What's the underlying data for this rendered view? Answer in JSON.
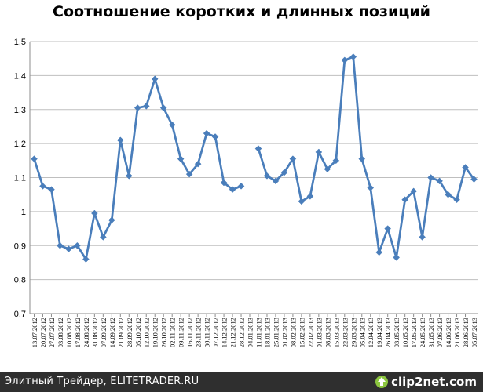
{
  "chart_data": {
    "type": "line",
    "title": "Соотношение коротких и длинных позиций",
    "xlabel": "",
    "ylabel": "",
    "ylim": [
      0.7,
      1.5
    ],
    "yticks": [
      "1,5",
      "1,4",
      "1,3",
      "1,2",
      "1,1",
      "1",
      "0,9",
      "0,8",
      "0,7"
    ],
    "grid": true,
    "legend": "none",
    "line_color": "#4a7ebb",
    "categories": [
      "13.07.2012",
      "20.07.2012",
      "27.07.2012",
      "03.08.2012",
      "10.08.2012",
      "17.08.2012",
      "24.08.2012",
      "31.08.2012",
      "07.09.2012",
      "14.09.2012",
      "21.09.2012",
      "28.09.2012",
      "05.10.2012",
      "12.10.2012",
      "19.10.2012",
      "26.10.2012",
      "02.11.2012",
      "09.11.2012",
      "16.11.2012",
      "23.11.2012",
      "30.11.2012",
      "07.12.2012",
      "14.12.2012",
      "21.12.2012",
      "28.12.2012",
      "04.01.2013",
      "11.01.2013",
      "18.01.2013",
      "25.01.2013",
      "01.02.2013",
      "08.02.2013",
      "15.02.2013",
      "22.02.2013",
      "01.03.2013",
      "08.03.2013",
      "15.03.2013",
      "22.03.2013",
      "29.03.2013",
      "05.04.2013",
      "12.04.2013",
      "19.04.2013",
      "26.04.2013",
      "03.05.2013",
      "10.05.2013",
      "17.05.2013",
      "24.05.2013",
      "31.05.2013",
      "07.06.2013",
      "14.06.2013",
      "21.06.2013",
      "28.06.2013",
      "05.07.2013"
    ],
    "values": [
      1.155,
      1.075,
      1.065,
      0.9,
      0.89,
      0.9,
      0.86,
      0.995,
      0.925,
      0.975,
      1.21,
      1.105,
      1.305,
      1.31,
      1.39,
      1.305,
      1.255,
      1.155,
      1.11,
      1.14,
      1.23,
      1.22,
      1.085,
      1.065,
      1.075,
      null,
      1.185,
      1.105,
      1.09,
      1.115,
      1.155,
      1.03,
      1.045,
      1.175,
      1.125,
      1.15,
      1.445,
      1.455,
      1.155,
      1.07,
      0.88,
      0.95,
      0.865,
      1.035,
      1.06,
      0.925,
      1.1,
      1.09,
      1.05,
      1.035,
      1.13,
      1.095
    ]
  },
  "footer": {
    "caption": "Элитный Трейдер, ELITETRADER.RU",
    "logo_text": "clip2net.com"
  }
}
